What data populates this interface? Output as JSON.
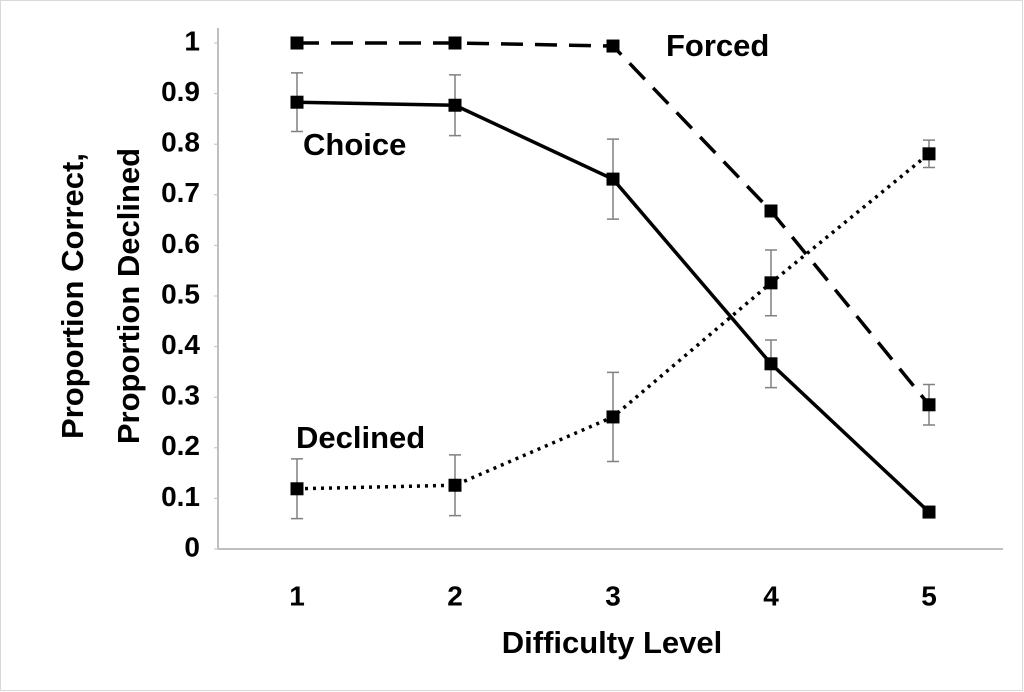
{
  "chart_data": {
    "type": "line",
    "xlabel": "Difficulty Level",
    "ylabel": [
      "Proportion Correct,",
      "Proportion Declined"
    ],
    "categories": [
      "1",
      "2",
      "3",
      "4",
      "5"
    ],
    "series": [
      {
        "name": "Forced",
        "color": "#000000",
        "dash": "dashed",
        "values": [
          1,
          1,
          0.994,
          0.668,
          0.285
        ],
        "errors": [
          null,
          null,
          null,
          null,
          0.04
        ]
      },
      {
        "name": "Choice",
        "color": "#000000",
        "dash": "solid",
        "values": [
          0.883,
          0.877,
          0.731,
          0.366,
          0.073
        ],
        "errors": [
          0.058,
          0.06,
          0.079,
          0.047,
          null
        ]
      },
      {
        "name": "Declined",
        "color": "#000000",
        "dash": "dotted",
        "values": [
          0.119,
          0.126,
          0.261,
          0.526,
          0.781
        ],
        "errors": [
          0.059,
          0.06,
          0.088,
          0.065,
          0.027
        ]
      }
    ],
    "ylim": [
      0,
      1
    ],
    "yticks": [
      0,
      0.1,
      0.2,
      0.3,
      0.4,
      0.5,
      0.6,
      0.7,
      0.8,
      0.9,
      1
    ],
    "grid": false
  }
}
